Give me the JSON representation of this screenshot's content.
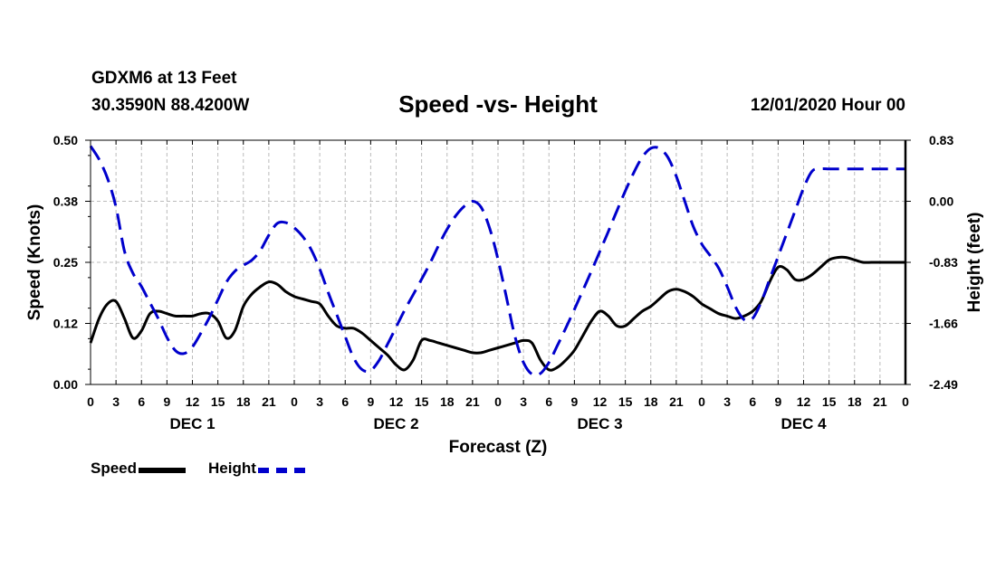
{
  "header": {
    "station": "GDXM6 at 13 Feet",
    "coords": "30.3590N 88.4200W",
    "title": "Speed -vs- Height",
    "datetime": "12/01/2020 Hour 00"
  },
  "legend": {
    "speed_label": "Speed",
    "height_label": "Height"
  },
  "colors": {
    "speed": "#000000",
    "height": "#0000cc",
    "grid": "#bbbbbb"
  },
  "chart_data": {
    "type": "line",
    "title": "Speed -vs- Height",
    "xlabel": "Forecast (Z)",
    "ylabel_left": "Speed (Knots)",
    "ylabel_right": "Height (feet)",
    "x_range_hours": [
      0,
      96
    ],
    "ylim_left": [
      0,
      0.5
    ],
    "ylim_right": [
      -2.49,
      0.83
    ],
    "left_ticks": [
      "0.00",
      "0.12",
      "0.25",
      "0.38",
      "0.50"
    ],
    "right_ticks": [
      "-2.49",
      "-1.66",
      "-0.83",
      "0.00",
      "0.83"
    ],
    "x_tick_labels": [
      "0",
      "3",
      "6",
      "9",
      "12",
      "15",
      "18",
      "21",
      "0",
      "3",
      "6",
      "9",
      "12",
      "15",
      "18",
      "21",
      "0",
      "3",
      "6",
      "9",
      "12",
      "15",
      "18",
      "21",
      "0",
      "3",
      "6",
      "9",
      "12",
      "15",
      "18",
      "21",
      "0"
    ],
    "day_labels": [
      "DEC 1",
      "DEC 2",
      "DEC 3",
      "DEC 4"
    ],
    "grid": true,
    "series": [
      {
        "name": "Speed",
        "axis": "left",
        "style": "solid",
        "x": [
          0,
          1,
          2,
          3,
          4,
          5,
          6,
          7,
          8,
          9,
          10,
          11,
          12,
          13,
          14,
          15,
          16,
          17,
          18,
          19,
          20,
          21,
          22,
          23,
          24,
          25,
          26,
          27,
          28,
          29,
          30,
          31,
          32,
          33,
          34,
          35,
          36,
          37,
          38,
          39,
          40,
          41,
          42,
          43,
          44,
          45,
          46,
          47,
          48,
          49,
          50,
          51,
          52,
          53,
          54,
          55,
          56,
          57,
          58,
          59,
          60,
          61,
          62,
          63,
          64,
          65,
          66,
          67,
          68,
          69,
          70,
          71,
          72,
          73,
          74,
          75,
          76,
          77,
          78,
          79,
          80,
          81,
          82,
          83,
          84,
          85,
          86,
          87,
          88,
          89,
          90,
          91,
          92,
          93,
          94,
          95,
          96
        ],
        "values": [
          0.085,
          0.135,
          0.165,
          0.17,
          0.135,
          0.095,
          0.11,
          0.145,
          0.15,
          0.145,
          0.14,
          0.14,
          0.14,
          0.145,
          0.145,
          0.13,
          0.095,
          0.11,
          0.16,
          0.185,
          0.2,
          0.21,
          0.205,
          0.19,
          0.18,
          0.175,
          0.17,
          0.165,
          0.14,
          0.12,
          0.115,
          0.115,
          0.105,
          0.09,
          0.075,
          0.06,
          0.04,
          0.03,
          0.05,
          0.09,
          0.09,
          0.085,
          0.08,
          0.075,
          0.07,
          0.065,
          0.065,
          0.07,
          0.075,
          0.08,
          0.085,
          0.09,
          0.085,
          0.05,
          0.03,
          0.035,
          0.05,
          0.07,
          0.1,
          0.13,
          0.15,
          0.14,
          0.12,
          0.12,
          0.135,
          0.15,
          0.16,
          0.175,
          0.19,
          0.195,
          0.19,
          0.18,
          0.165,
          0.155,
          0.145,
          0.14,
          0.135,
          0.14,
          0.15,
          0.17,
          0.21,
          0.24,
          0.235,
          0.215,
          0.215,
          0.225,
          0.24,
          0.255,
          0.26,
          0.26,
          0.255,
          0.25,
          0.25,
          0.25,
          0.25,
          0.25,
          0.25
        ]
      },
      {
        "name": "Height",
        "axis": "right",
        "style": "dashed",
        "x": [
          0,
          1,
          2,
          3,
          4,
          5,
          6,
          7,
          8,
          9,
          10,
          11,
          12,
          13,
          14,
          15,
          16,
          17,
          18,
          19,
          20,
          21,
          22,
          23,
          24,
          25,
          26,
          27,
          28,
          29,
          30,
          31,
          32,
          33,
          34,
          35,
          36,
          37,
          38,
          39,
          40,
          41,
          42,
          43,
          44,
          45,
          46,
          47,
          48,
          49,
          50,
          51,
          52,
          53,
          54,
          55,
          56,
          57,
          58,
          59,
          60,
          61,
          62,
          63,
          64,
          65,
          66,
          67,
          68,
          69,
          70,
          71,
          72,
          73,
          74,
          75,
          76,
          77,
          78,
          79,
          80,
          81,
          82,
          83,
          84,
          85,
          86,
          87,
          88,
          89,
          90,
          91,
          92,
          93,
          94,
          95,
          96
        ],
        "values": [
          0.75,
          0.57,
          0.31,
          -0.08,
          -0.68,
          -0.98,
          -1.16,
          -1.38,
          -1.6,
          -1.85,
          -2.03,
          -2.07,
          -1.98,
          -1.79,
          -1.58,
          -1.34,
          -1.1,
          -0.95,
          -0.87,
          -0.8,
          -0.67,
          -0.46,
          -0.3,
          -0.29,
          -0.36,
          -0.48,
          -0.66,
          -0.92,
          -1.24,
          -1.54,
          -1.84,
          -2.13,
          -2.29,
          -2.3,
          -2.16,
          -1.94,
          -1.71,
          -1.48,
          -1.27,
          -1.06,
          -0.84,
          -0.6,
          -0.38,
          -0.2,
          -0.07,
          0.0,
          -0.08,
          -0.36,
          -0.79,
          -1.31,
          -1.84,
          -2.19,
          -2.35,
          -2.34,
          -2.19,
          -1.96,
          -1.72,
          -1.47,
          -1.21,
          -0.95,
          -0.68,
          -0.41,
          -0.13,
          0.14,
          0.39,
          0.6,
          0.72,
          0.72,
          0.6,
          0.34,
          0.0,
          -0.34,
          -0.58,
          -0.74,
          -0.91,
          -1.16,
          -1.44,
          -1.61,
          -1.59,
          -1.37,
          -1.06,
          -0.75,
          -0.44,
          -0.13,
          0.18,
          0.41,
          0.44,
          0.44,
          0.44,
          0.44,
          0.44,
          0.44,
          0.44,
          0.44,
          0.44,
          0.44,
          0.44
        ]
      }
    ]
  }
}
